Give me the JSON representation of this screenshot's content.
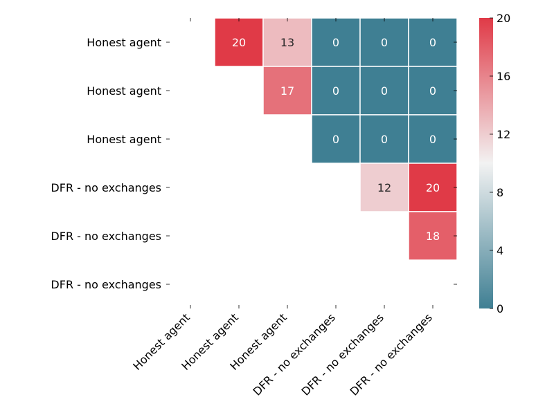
{
  "chart_data": {
    "type": "heatmap",
    "title": "",
    "xlabel": "",
    "ylabel": "",
    "row_labels": [
      "Honest agent",
      "Honest agent",
      "Honest agent",
      "DFR - no exchanges",
      "DFR - no exchanges",
      "DFR - no exchanges"
    ],
    "col_labels": [
      "Honest agent",
      "Honest agent",
      "Honest agent",
      "DFR - no exchanges",
      "DFR - no exchanges",
      "DFR - no exchanges"
    ],
    "values": [
      [
        null,
        20,
        13,
        0,
        0,
        0
      ],
      [
        null,
        null,
        17,
        0,
        0,
        0
      ],
      [
        null,
        null,
        null,
        0,
        0,
        0
      ],
      [
        null,
        null,
        null,
        null,
        12,
        20
      ],
      [
        null,
        null,
        null,
        null,
        null,
        18
      ],
      [
        null,
        null,
        null,
        null,
        null,
        null
      ]
    ],
    "vmin": 0,
    "vmax": 20,
    "colorbar_ticks": [
      "0",
      "4",
      "8",
      "12",
      "16",
      "20"
    ],
    "colormap": {
      "low": "#3f7f93",
      "mid": "#f2f2f2",
      "high": "#e03a47"
    }
  }
}
